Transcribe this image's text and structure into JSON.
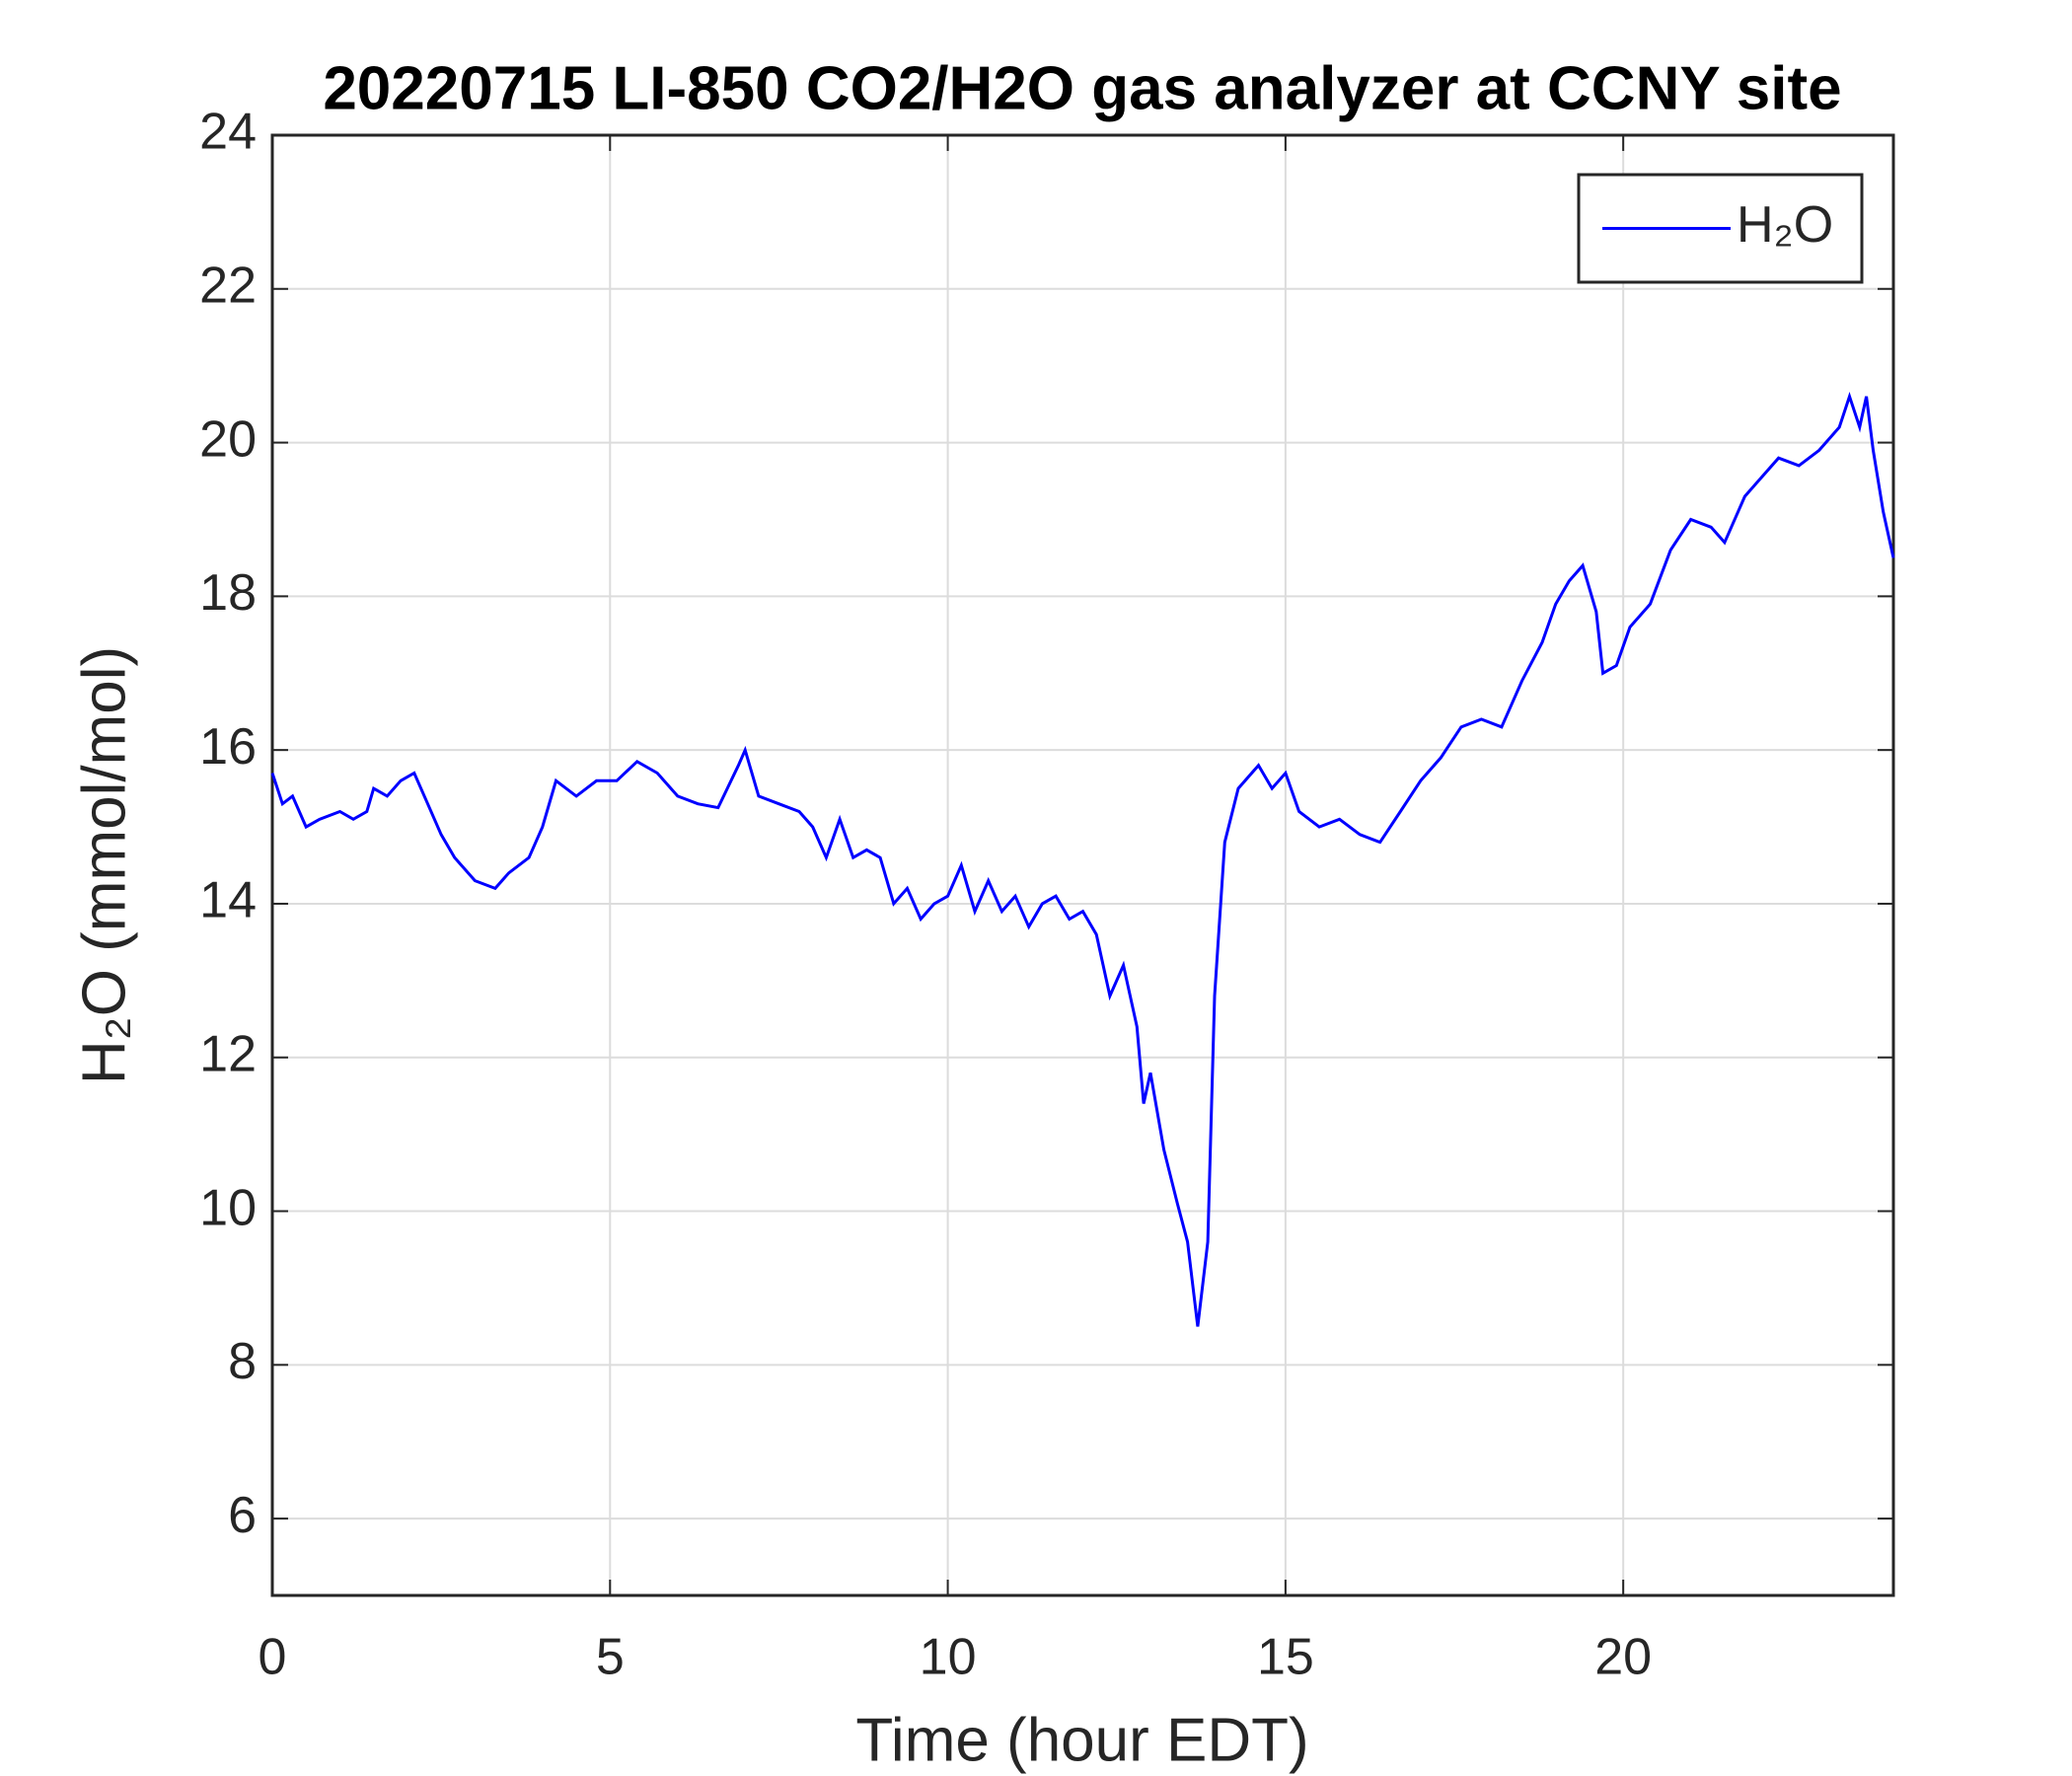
{
  "chart_data": {
    "type": "line",
    "title": "20220715 LI-850 CO2/H2O gas analyzer at CCNY site",
    "xlabel": "Time (hour EDT)",
    "ylabel": "H₂O (mmol/mol)",
    "x": [
      0,
      0.15,
      0.3,
      0.5,
      0.7,
      1.0,
      1.2,
      1.4,
      1.5,
      1.7,
      1.9,
      2.1,
      2.3,
      2.5,
      2.7,
      3.0,
      3.3,
      3.5,
      3.8,
      4.0,
      4.2,
      4.5,
      4.8,
      5.1,
      5.4,
      5.7,
      6.0,
      6.3,
      6.6,
      6.9,
      7.0,
      7.2,
      7.5,
      7.8,
      8.0,
      8.2,
      8.4,
      8.6,
      8.8,
      9.0,
      9.2,
      9.4,
      9.6,
      9.8,
      10.0,
      10.2,
      10.4,
      10.6,
      10.8,
      11.0,
      11.2,
      11.4,
      11.6,
      11.8,
      12.0,
      12.2,
      12.4,
      12.6,
      12.8,
      12.9,
      13.0,
      13.2,
      13.4,
      13.55,
      13.7,
      13.85,
      13.95,
      14.1,
      14.3,
      14.6,
      14.8,
      15.0,
      15.2,
      15.5,
      15.8,
      16.1,
      16.4,
      16.7,
      17.0,
      17.3,
      17.6,
      17.9,
      18.2,
      18.5,
      18.8,
      19.0,
      19.2,
      19.4,
      19.6,
      19.7,
      19.9,
      20.1,
      20.4,
      20.7,
      21.0,
      21.3,
      21.5,
      21.8,
      22.1,
      22.3,
      22.6,
      22.9,
      23.2,
      23.35,
      23.5,
      23.6,
      23.7,
      23.85,
      24.0
    ],
    "series": [
      {
        "name": "H₂O",
        "color": "#0000ff",
        "values": [
          15.7,
          15.3,
          15.4,
          15.0,
          15.1,
          15.2,
          15.1,
          15.2,
          15.5,
          15.4,
          15.6,
          15.7,
          15.3,
          14.9,
          14.6,
          14.3,
          14.2,
          14.4,
          14.6,
          15.0,
          15.6,
          15.4,
          15.6,
          15.6,
          15.85,
          15.7,
          15.4,
          15.3,
          15.25,
          15.8,
          16.0,
          15.4,
          15.3,
          15.2,
          15.0,
          14.6,
          15.1,
          14.6,
          14.7,
          14.6,
          14.0,
          14.2,
          13.8,
          14.0,
          14.1,
          14.5,
          13.9,
          14.3,
          13.9,
          14.1,
          13.7,
          14.0,
          14.1,
          13.8,
          13.9,
          13.6,
          12.8,
          13.2,
          12.4,
          11.4,
          11.8,
          10.8,
          10.1,
          9.6,
          8.5,
          9.6,
          12.8,
          14.8,
          15.5,
          15.8,
          15.5,
          15.7,
          15.2,
          15.0,
          15.1,
          14.9,
          14.8,
          15.2,
          15.6,
          15.9,
          16.3,
          16.4,
          16.3,
          16.9,
          17.4,
          17.9,
          18.2,
          18.4,
          17.8,
          17.0,
          17.1,
          17.6,
          17.9,
          18.6,
          19.0,
          18.9,
          18.7,
          19.3,
          19.6,
          19.8,
          19.7,
          19.9,
          20.2,
          20.6,
          20.2,
          20.6,
          19.9,
          19.1,
          18.5
        ]
      }
    ],
    "xlim": [
      0,
      24
    ],
    "xticks": [
      0,
      5,
      10,
      15,
      20
    ],
    "ylim": [
      5,
      24
    ],
    "yticks": [
      6,
      8,
      10,
      12,
      14,
      16,
      18,
      20,
      22,
      24
    ],
    "grid": true,
    "legend": "upper-right"
  }
}
